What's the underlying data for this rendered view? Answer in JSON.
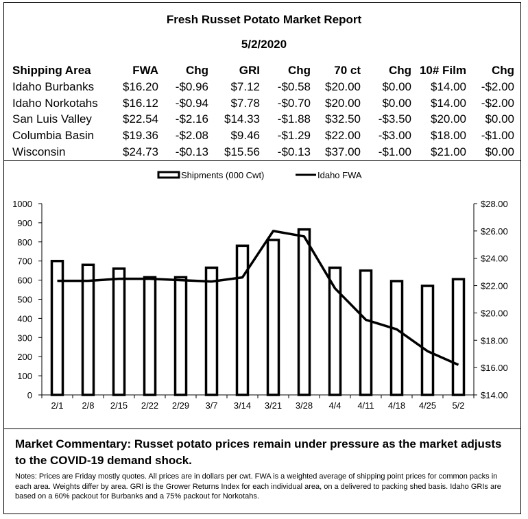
{
  "report": {
    "title": "Fresh Russet Potato Market Report",
    "date": "5/2/2020"
  },
  "table": {
    "headers": [
      "Shipping Area",
      "FWA",
      "Chg",
      "GRI",
      "Chg",
      "70 ct",
      "Chg",
      "10# Film",
      "Chg"
    ],
    "rows": [
      [
        "Idaho Burbanks",
        "$16.20",
        "-$0.96",
        "$7.12",
        "-$0.58",
        "$20.00",
        "$0.00",
        "$14.00",
        "-$2.00"
      ],
      [
        "Idaho Norkotahs",
        "$16.12",
        "-$0.94",
        "$7.78",
        "-$0.70",
        "$20.00",
        "$0.00",
        "$14.00",
        "-$2.00"
      ],
      [
        "San Luis Valley",
        "$22.54",
        "-$2.16",
        "$14.33",
        "-$1.88",
        "$32.50",
        "-$3.50",
        "$20.00",
        "$0.00"
      ],
      [
        "Columbia Basin",
        "$19.36",
        "-$2.08",
        "$9.46",
        "-$1.29",
        "$22.00",
        "-$3.00",
        "$18.00",
        "-$1.00"
      ],
      [
        "Wisconsin",
        "$24.73",
        "-$0.13",
        "$15.56",
        "-$0.13",
        "$37.00",
        "-$1.00",
        "$21.00",
        "$0.00"
      ]
    ]
  },
  "chart_data": {
    "type": "bar",
    "categories": [
      "2/1",
      "2/8",
      "2/15",
      "2/22",
      "2/29",
      "3/7",
      "3/14",
      "3/21",
      "3/28",
      "4/4",
      "4/11",
      "4/18",
      "4/25",
      "5/2"
    ],
    "series": [
      {
        "name": "Shipments (000 Cwt)",
        "type": "bar",
        "axis": "left",
        "values": [
          700,
          680,
          660,
          615,
          615,
          665,
          780,
          810,
          865,
          665,
          650,
          595,
          570,
          605
        ]
      },
      {
        "name": "Idaho FWA",
        "type": "line",
        "axis": "right",
        "values": [
          22.35,
          22.35,
          22.5,
          22.5,
          22.4,
          22.3,
          22.6,
          26.0,
          25.6,
          21.8,
          19.5,
          18.8,
          17.2,
          16.2
        ]
      }
    ],
    "yleft": {
      "ylim": [
        0,
        1000
      ],
      "ticks": [
        "0",
        "100",
        "200",
        "300",
        "400",
        "500",
        "600",
        "700",
        "800",
        "900",
        "1000"
      ]
    },
    "yright": {
      "ylim": [
        14,
        28
      ],
      "ticks": [
        "$14.00",
        "$16.00",
        "$18.00",
        "$20.00",
        "$22.00",
        "$24.00",
        "$26.00",
        "$28.00"
      ]
    },
    "legend": "top",
    "grid": false,
    "colors": {
      "bar_fill": "#ffffff",
      "bar_stroke": "#000000",
      "line": "#000000"
    }
  },
  "commentary": "Market Commentary: Russet potato prices remain under pressure as the market adjusts to the COVID-19 demand shock.",
  "notes": "Notes: Prices are Friday mostly quotes. All prices are in dollars per cwt. FWA is a weighted average of shipping point prices for common packs in each area. Weights differ by area. GRI is the Grower Returns Index for each individual area, on a delivered to packing shed basis. Idaho GRIs are based on a 60% packout for Burbanks and a 75% packout for Norkotahs."
}
